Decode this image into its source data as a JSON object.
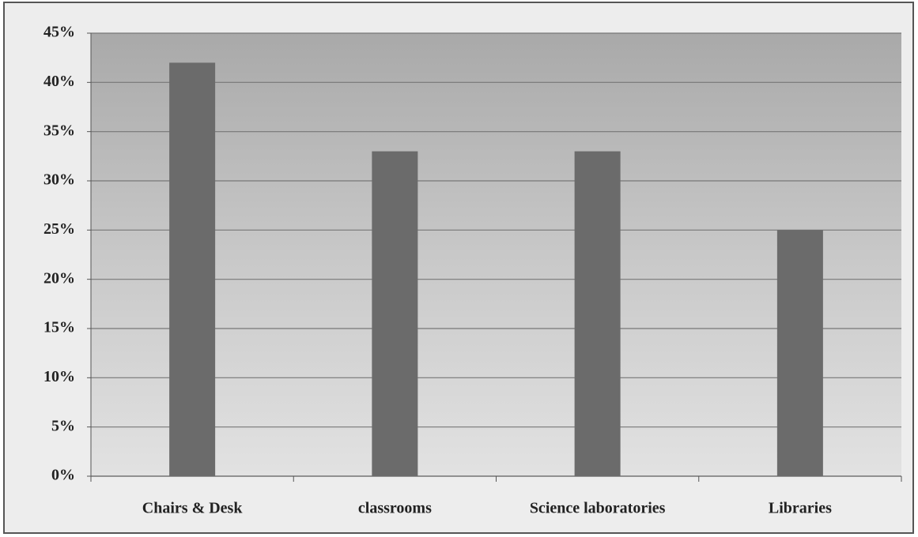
{
  "chart_data": {
    "type": "bar",
    "categories": [
      "Chairs & Desk",
      "classrooms",
      "Science laboratories",
      "Libraries"
    ],
    "values": [
      42,
      33,
      33,
      25
    ],
    "color": "#6b6b6b",
    "ylim": [
      0,
      45
    ],
    "yticks": [
      {
        "value": 0,
        "label": "0%"
      },
      {
        "value": 5,
        "label": "5%"
      },
      {
        "value": 10,
        "label": "10%"
      },
      {
        "value": 15,
        "label": "15%"
      },
      {
        "value": 20,
        "label": "20%"
      },
      {
        "value": 25,
        "label": "25%"
      },
      {
        "value": 30,
        "label": "30%"
      },
      {
        "value": 35,
        "label": "35%"
      },
      {
        "value": 40,
        "label": "40%"
      },
      {
        "value": 45,
        "label": "45%"
      }
    ],
    "grid": true
  }
}
